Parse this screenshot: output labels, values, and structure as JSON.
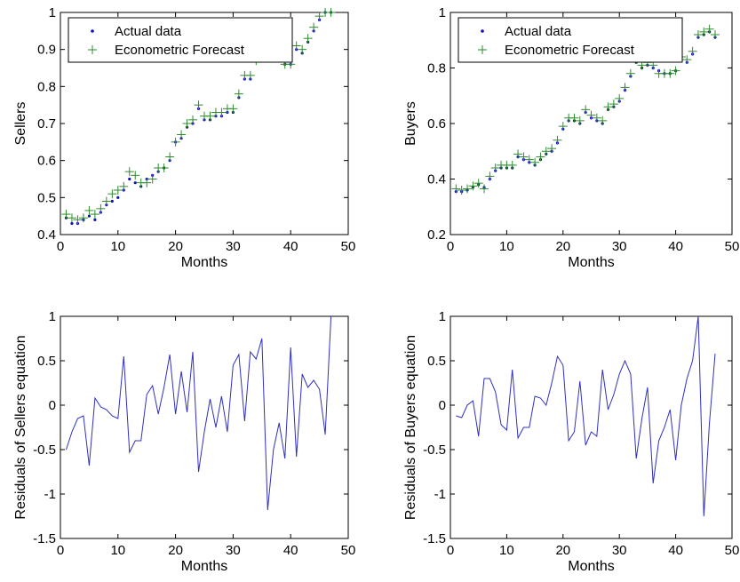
{
  "chart_data": [
    {
      "type": "scatter",
      "xlabel": "Months",
      "ylabel": "Sellers",
      "xlim": [
        0,
        50
      ],
      "ylim": [
        0.4,
        1
      ],
      "xticks": [
        "0",
        "10",
        "20",
        "30",
        "40",
        "50"
      ],
      "yticks": [
        "0.4",
        "0.5",
        "0.6",
        "0.7",
        "0.8",
        "0.9",
        "1"
      ],
      "legend_position": "top-left",
      "x": [
        1,
        2,
        3,
        4,
        5,
        6,
        7,
        8,
        9,
        10,
        11,
        12,
        13,
        14,
        15,
        16,
        17,
        18,
        19,
        20,
        21,
        22,
        23,
        24,
        25,
        26,
        27,
        28,
        29,
        30,
        31,
        32,
        33,
        34,
        35,
        36,
        37,
        38,
        39,
        40,
        41,
        42,
        43,
        44,
        45,
        46,
        47
      ],
      "series": [
        {
          "name": "Actual data",
          "marker": "dot",
          "color": "#1010c0",
          "values": [
            0.445,
            0.43,
            0.43,
            0.44,
            0.45,
            0.44,
            0.46,
            0.48,
            0.49,
            0.5,
            0.52,
            0.55,
            0.54,
            0.53,
            0.55,
            0.56,
            0.57,
            0.58,
            0.6,
            0.65,
            0.66,
            0.69,
            0.7,
            0.74,
            0.71,
            0.71,
            0.72,
            0.72,
            0.73,
            0.73,
            0.77,
            0.82,
            0.82,
            0.87,
            0.91,
            0.92,
            0.93,
            0.92,
            0.86,
            0.86,
            0.9,
            0.89,
            0.92,
            0.95,
            0.98,
            1.0,
            1.0
          ]
        },
        {
          "name": "Econometric Forecast",
          "marker": "plus",
          "color": "#2e8b2e",
          "values": [
            0.455,
            0.445,
            0.44,
            0.445,
            0.465,
            0.455,
            0.47,
            0.49,
            0.51,
            0.52,
            0.53,
            0.57,
            0.56,
            0.54,
            0.54,
            0.55,
            0.58,
            0.58,
            0.61,
            0.65,
            0.67,
            0.7,
            0.71,
            0.75,
            0.72,
            0.72,
            0.73,
            0.73,
            0.74,
            0.74,
            0.78,
            0.83,
            0.83,
            0.87,
            0.91,
            0.91,
            0.92,
            0.91,
            0.86,
            0.86,
            0.91,
            0.9,
            0.93,
            0.96,
            0.99,
            1.0,
            1.0
          ]
        }
      ]
    },
    {
      "type": "scatter",
      "xlabel": "Months",
      "ylabel": "Buyers",
      "xlim": [
        0,
        50
      ],
      "ylim": [
        0.2,
        1
      ],
      "xticks": [
        "0",
        "10",
        "20",
        "30",
        "40",
        "50"
      ],
      "yticks": [
        "0.2",
        "0.4",
        "0.6",
        "0.8",
        "1"
      ],
      "legend_position": "top-left",
      "x": [
        1,
        2,
        3,
        4,
        5,
        6,
        7,
        8,
        9,
        10,
        11,
        12,
        13,
        14,
        15,
        16,
        17,
        18,
        19,
        20,
        21,
        22,
        23,
        24,
        25,
        26,
        27,
        28,
        29,
        30,
        31,
        32,
        33,
        34,
        35,
        36,
        37,
        38,
        39,
        40,
        41,
        42,
        43,
        44,
        45,
        46,
        47
      ],
      "series": [
        {
          "name": "Actual data",
          "marker": "dot",
          "color": "#1010c0",
          "values": [
            0.355,
            0.355,
            0.36,
            0.37,
            0.38,
            0.37,
            0.4,
            0.43,
            0.44,
            0.44,
            0.44,
            0.48,
            0.47,
            0.46,
            0.45,
            0.47,
            0.49,
            0.5,
            0.53,
            0.58,
            0.61,
            0.61,
            0.6,
            0.64,
            0.62,
            0.61,
            0.6,
            0.65,
            0.66,
            0.68,
            0.72,
            0.77,
            0.82,
            0.8,
            0.81,
            0.8,
            0.79,
            0.78,
            0.78,
            0.79,
            0.83,
            0.82,
            0.85,
            0.91,
            0.92,
            0.93,
            0.91
          ]
        },
        {
          "name": "Econometric Forecast",
          "marker": "plus",
          "color": "#2e8b2e",
          "values": [
            0.365,
            0.36,
            0.365,
            0.375,
            0.385,
            0.365,
            0.41,
            0.44,
            0.45,
            0.45,
            0.45,
            0.49,
            0.48,
            0.47,
            0.46,
            0.48,
            0.5,
            0.51,
            0.54,
            0.59,
            0.62,
            0.62,
            0.61,
            0.65,
            0.63,
            0.62,
            0.61,
            0.66,
            0.67,
            0.69,
            0.73,
            0.78,
            0.83,
            0.81,
            0.82,
            0.81,
            0.78,
            0.78,
            0.78,
            0.79,
            0.84,
            0.83,
            0.86,
            0.92,
            0.93,
            0.94,
            0.92
          ]
        }
      ]
    },
    {
      "type": "line",
      "xlabel": "Months",
      "ylabel": "Residuals of Sellers equation",
      "xlim": [
        0,
        50
      ],
      "ylim": [
        -1.5,
        1
      ],
      "xticks": [
        "0",
        "10",
        "20",
        "30",
        "40",
        "50"
      ],
      "yticks": [
        "-1.5",
        "-1",
        "-0.5",
        "0",
        "0.5",
        "1"
      ],
      "x": [
        1,
        2,
        3,
        4,
        5,
        6,
        7,
        8,
        9,
        10,
        11,
        12,
        13,
        14,
        15,
        16,
        17,
        18,
        19,
        20,
        21,
        22,
        23,
        24,
        25,
        26,
        27,
        28,
        29,
        30,
        31,
        32,
        33,
        34,
        35,
        36,
        37,
        38,
        39,
        40,
        41,
        42,
        43,
        44,
        45,
        46,
        47
      ],
      "series": [
        {
          "color": "#3030c0",
          "values": [
            -0.5,
            -0.3,
            -0.15,
            -0.12,
            -0.68,
            0.08,
            -0.02,
            -0.05,
            -0.12,
            -0.15,
            0.55,
            -0.53,
            -0.4,
            -0.4,
            0.12,
            0.22,
            -0.1,
            0.2,
            0.57,
            -0.1,
            0.38,
            -0.08,
            0.6,
            -0.75,
            -0.3,
            0.07,
            -0.25,
            0.1,
            -0.3,
            0.45,
            0.57,
            -0.18,
            0.6,
            0.52,
            0.75,
            -1.18,
            -0.5,
            -0.2,
            -0.6,
            0.65,
            -0.58,
            0.35,
            0.2,
            0.28,
            0.18,
            -0.33,
            1.0
          ]
        }
      ]
    },
    {
      "type": "line",
      "xlabel": "Months",
      "ylabel": "Residuals of Buyers equation",
      "xlim": [
        0,
        50
      ],
      "ylim": [
        -1.5,
        1
      ],
      "xticks": [
        "0",
        "10",
        "20",
        "30",
        "40",
        "50"
      ],
      "yticks": [
        "-1.5",
        "-1",
        "-0.5",
        "0",
        "0.5",
        "1"
      ],
      "x": [
        1,
        2,
        3,
        4,
        5,
        6,
        7,
        8,
        9,
        10,
        11,
        12,
        13,
        14,
        15,
        16,
        17,
        18,
        19,
        20,
        21,
        22,
        23,
        24,
        25,
        26,
        27,
        28,
        29,
        30,
        31,
        32,
        33,
        34,
        35,
        36,
        37,
        38,
        39,
        40,
        41,
        42,
        43,
        44,
        45,
        46,
        47
      ],
      "series": [
        {
          "color": "#3030c0",
          "values": [
            -0.12,
            -0.14,
            0.0,
            0.05,
            -0.35,
            0.3,
            0.3,
            0.15,
            -0.22,
            -0.28,
            0.4,
            -0.37,
            -0.25,
            -0.25,
            0.1,
            0.08,
            0.0,
            0.25,
            0.55,
            0.45,
            -0.4,
            -0.3,
            0.27,
            -0.45,
            -0.3,
            -0.35,
            0.4,
            -0.05,
            0.12,
            0.35,
            0.5,
            0.35,
            -0.6,
            -0.15,
            0.2,
            -0.88,
            -0.4,
            -0.25,
            -0.05,
            -0.62,
            0.0,
            0.3,
            0.5,
            1.0,
            -1.25,
            -0.2,
            0.58
          ]
        }
      ]
    }
  ]
}
